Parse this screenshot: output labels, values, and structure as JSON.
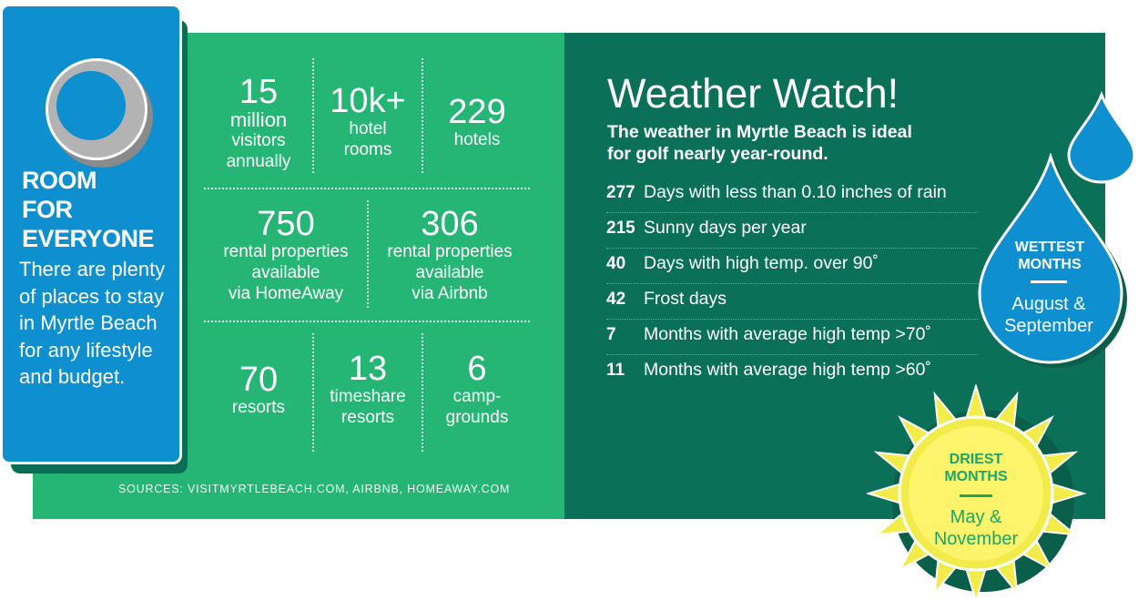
{
  "left_panel": {
    "door": {
      "title_lines": [
        "ROOM",
        "FOR",
        "EVERYONE"
      ],
      "text": "There are plenty of places to stay in Myrtle Beach for any lifestyle and budget."
    },
    "stats_row1": [
      {
        "num": "15",
        "label_lines": [
          "million",
          "visitors",
          "annually"
        ]
      },
      {
        "num": "10k+",
        "label_lines": [
          "hotel",
          "rooms"
        ]
      },
      {
        "num": "229",
        "label_lines": [
          "hotels"
        ]
      }
    ],
    "stats_row2": [
      {
        "num": "750",
        "label_lines": [
          "rental properties",
          "available",
          "via HomeAway"
        ]
      },
      {
        "num": "306",
        "label_lines": [
          "rental properties",
          "available",
          "via Airbnb"
        ]
      }
    ],
    "stats_row3": [
      {
        "num": "70",
        "label_lines": [
          "resorts"
        ]
      },
      {
        "num": "13",
        "label_lines": [
          "timeshare",
          "resorts"
        ]
      },
      {
        "num": "6",
        "label_lines": [
          "camp-",
          "grounds"
        ]
      }
    ],
    "sources": "SOURCES: VISITMYRTLEBEACH.COM, AIRBNB, HOMEAWAY.COM"
  },
  "weather": {
    "title": "Weather Watch!",
    "subtitle_lines": [
      "The weather in Myrtle Beach is ideal",
      "for golf nearly year-round."
    ],
    "rows": [
      {
        "num": "277",
        "text": "Days with less than 0.10 inches of rain"
      },
      {
        "num": "215",
        "text": "Sunny days per year"
      },
      {
        "num": "40",
        "text": "Days with high temp. over 90˚"
      },
      {
        "num": "42",
        "text": "Frost days"
      },
      {
        "num": "7",
        "text": "Months with average high temp >70˚"
      },
      {
        "num": "11",
        "text": "Months with average high temp >60˚"
      }
    ],
    "wettest": {
      "title_lines": [
        "WETTEST",
        "MONTHS"
      ],
      "text_lines": [
        "August &",
        "September"
      ]
    },
    "driest": {
      "title_lines": [
        "DRIEST",
        "MONTHS"
      ],
      "text_lines": [
        "May &",
        "November"
      ]
    }
  },
  "colors": {
    "green": "#25b575",
    "dark_green": "#0b7058",
    "blue": "#0e8fcf",
    "sun_yellow": "#f2ec4b",
    "sun_core": "#fdf46c"
  }
}
